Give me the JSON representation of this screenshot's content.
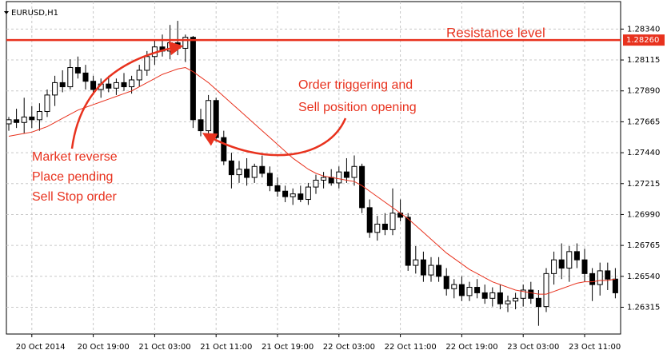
{
  "chart_data": {
    "type": "candlestick",
    "symbol": "EURUSD,H1",
    "categories": [
      null,
      null,
      null,
      "20 Oct 2014",
      null,
      null,
      null,
      null,
      null,
      null,
      null,
      "20 Oct 19:00",
      null,
      null,
      null,
      null,
      null,
      null,
      null,
      "21 Oct 03:00",
      null,
      null,
      null,
      null,
      null,
      null,
      null,
      "21 Oct 11:00",
      null,
      null,
      null,
      null,
      null,
      null,
      null,
      "21 Oct 19:00",
      null,
      null,
      null,
      null,
      null,
      null,
      null,
      "22 Oct 03:00",
      null,
      null,
      null,
      null,
      null,
      null,
      null,
      "22 Oct 11:00",
      null,
      null,
      null,
      null,
      null,
      null,
      null,
      "22 Oct 19:00",
      null,
      null,
      null,
      null,
      null,
      null,
      null,
      "23 Oct 03:00",
      null,
      null,
      null,
      null,
      null,
      null,
      null,
      "23 Oct 11:00",
      null,
      null,
      null,
      null
    ],
    "open": [
      1.2765,
      1.2768,
      1.2766,
      1.277,
      1.2768,
      1.2774,
      1.2786,
      1.2795,
      1.2792,
      1.2806,
      1.2802,
      1.2796,
      1.279,
      1.2794,
      1.2791,
      1.2795,
      1.2792,
      1.2797,
      1.2804,
      1.2814,
      1.2821,
      1.2818,
      1.2824,
      1.282,
      1.2828,
      1.2768,
      1.276,
      1.2782,
      1.2755,
      1.2738,
      1.2728,
      1.2732,
      1.2726,
      1.2734,
      1.2729,
      1.272,
      1.2716,
      1.2712,
      1.2714,
      1.271,
      1.2719,
      1.2724,
      1.2726,
      1.2722,
      1.273,
      1.2726,
      1.2734,
      1.2704,
      1.2686,
      1.2692,
      1.2688,
      1.27,
      1.2697,
      1.2662,
      1.2666,
      1.2655,
      1.2662,
      1.2654,
      1.2645,
      1.2648,
      1.264,
      1.2646,
      1.2642,
      1.2638,
      1.2642,
      1.2634,
      1.2636,
      1.2638,
      1.2644,
      1.2638,
      1.2632,
      1.2656,
      1.2666,
      1.266,
      1.2672,
      1.2666,
      1.2656,
      1.2648,
      1.2658,
      1.2652
    ],
    "high": [
      1.277,
      1.2776,
      1.2784,
      1.2778,
      1.278,
      1.279,
      1.28,
      1.2804,
      1.2812,
      1.2814,
      1.2808,
      1.28,
      1.2798,
      1.28,
      1.2798,
      1.2802,
      1.28,
      1.2808,
      1.2818,
      1.2826,
      1.283,
      1.2837,
      1.284,
      1.283,
      1.2829,
      1.2776,
      1.2786,
      1.2784,
      1.276,
      1.2744,
      1.2738,
      1.274,
      1.2736,
      1.2742,
      1.2734,
      1.2726,
      1.272,
      1.2718,
      1.272,
      1.2722,
      1.2728,
      1.273,
      1.2732,
      1.2734,
      1.274,
      1.2742,
      1.2736,
      1.271,
      1.2698,
      1.27,
      1.2718,
      1.271,
      1.27,
      1.2676,
      1.2672,
      1.2668,
      1.2668,
      1.266,
      1.2652,
      1.2654,
      1.265,
      1.2652,
      1.2648,
      1.2646,
      1.2648,
      1.264,
      1.2642,
      1.2648,
      1.265,
      1.2644,
      1.266,
      1.2672,
      1.2678,
      1.2676,
      1.2678,
      1.2674,
      1.266,
      1.2664,
      1.2664,
      1.266
    ],
    "low": [
      1.276,
      1.2762,
      1.2758,
      1.2762,
      1.276,
      1.277,
      1.2778,
      1.2788,
      1.279,
      1.2798,
      1.279,
      1.2786,
      1.2784,
      1.2788,
      1.2786,
      1.2789,
      1.2787,
      1.2792,
      1.28,
      1.2808,
      1.2814,
      1.2812,
      1.2815,
      1.281,
      1.2762,
      1.2756,
      1.2756,
      1.2752,
      1.2735,
      1.2718,
      1.2722,
      1.272,
      1.2722,
      1.2726,
      1.2716,
      1.2712,
      1.2708,
      1.2706,
      1.2708,
      1.2706,
      1.2714,
      1.2718,
      1.272,
      1.2718,
      1.2722,
      1.272,
      1.27,
      1.2682,
      1.268,
      1.2684,
      1.2684,
      1.2694,
      1.2658,
      1.2656,
      1.265,
      1.265,
      1.265,
      1.264,
      1.2638,
      1.2636,
      1.2636,
      1.2638,
      1.2634,
      1.2632,
      1.263,
      1.2628,
      1.263,
      1.2632,
      1.2634,
      1.2618,
      1.2628,
      1.2648,
      1.2652,
      1.265,
      1.266,
      1.265,
      1.2636,
      1.264,
      1.2644,
      1.2638
    ],
    "close": [
      1.2768,
      1.2766,
      1.277,
      1.2768,
      1.2774,
      1.2786,
      1.2795,
      1.2792,
      1.2806,
      1.2802,
      1.2796,
      1.279,
      1.2794,
      1.2791,
      1.2795,
      1.2792,
      1.2797,
      1.2804,
      1.2814,
      1.2821,
      1.2818,
      1.2824,
      1.282,
      1.2828,
      1.2768,
      1.276,
      1.2782,
      1.2755,
      1.2738,
      1.2728,
      1.2732,
      1.2726,
      1.2734,
      1.2729,
      1.272,
      1.2716,
      1.2712,
      1.2714,
      1.271,
      1.2719,
      1.2724,
      1.2726,
      1.2722,
      1.273,
      1.2726,
      1.2734,
      1.2704,
      1.2686,
      1.2692,
      1.2688,
      1.27,
      1.2697,
      1.2662,
      1.2666,
      1.2655,
      1.2662,
      1.2654,
      1.2645,
      1.2648,
      1.264,
      1.2646,
      1.2642,
      1.2638,
      1.2642,
      1.2634,
      1.2636,
      1.2638,
      1.2644,
      1.2638,
      1.2632,
      1.2656,
      1.2666,
      1.266,
      1.2672,
      1.2666,
      1.2656,
      1.2648,
      1.2658,
      1.2652,
      1.2642
    ],
    "up_color": "#ffffff",
    "down_color": "#000000",
    "ma": {
      "color": "#e8321e",
      "values": [
        1.2756,
        1.2757,
        1.2758,
        1.2759,
        1.2761,
        1.2763,
        1.2766,
        1.2769,
        1.2772,
        1.2775,
        1.2777,
        1.2779,
        1.2781,
        1.2783,
        1.2785,
        1.2787,
        1.2789,
        1.2792,
        1.2795,
        1.2798,
        1.2801,
        1.2803,
        1.2805,
        1.2806,
        1.2803,
        1.2799,
        1.2795,
        1.279,
        1.2785,
        1.278,
        1.2775,
        1.277,
        1.2765,
        1.276,
        1.2755,
        1.275,
        1.2745,
        1.274,
        1.2736,
        1.2732,
        1.2729,
        1.2727,
        1.2726,
        1.2725,
        1.2724,
        1.2723,
        1.272,
        1.2716,
        1.2712,
        1.2708,
        1.2704,
        1.27,
        1.2696,
        1.2691,
        1.2686,
        1.2681,
        1.2676,
        1.2671,
        1.2667,
        1.2663,
        1.2659,
        1.2656,
        1.2653,
        1.265,
        1.2648,
        1.2646,
        1.2644,
        1.2643,
        1.2642,
        1.2641,
        1.2641,
        1.2643,
        1.2645,
        1.2647,
        1.2649,
        1.265,
        1.265,
        1.2651,
        1.2651,
        1.2652
      ]
    },
    "ylim": [
      1.2612,
      1.2854
    ],
    "yticks": [
      {
        "value": 1.2834,
        "label": "1.28340"
      },
      {
        "value": 1.28115,
        "label": "1.28115"
      },
      {
        "value": 1.2789,
        "label": "1.27890"
      },
      {
        "value": 1.27665,
        "label": "1.27665"
      },
      {
        "value": 1.2744,
        "label": "1.27440"
      },
      {
        "value": 1.27215,
        "label": "1.27215"
      },
      {
        "value": 1.2699,
        "label": "1.26990"
      },
      {
        "value": 1.26765,
        "label": "1.26765"
      },
      {
        "value": 1.2654,
        "label": "1.26540"
      },
      {
        "value": 1.26315,
        "label": "1.26315"
      }
    ],
    "grid": true,
    "resistance": {
      "label": "Resistance level",
      "value": 1.2826,
      "value_label": "1.28260",
      "color": "#e8321e"
    },
    "annotations": [
      {
        "lines": [
          "Order triggering and",
          "Sell position opening"
        ]
      },
      {
        "lines": [
          "Market reverse",
          "Place pending",
          "Sell Stop order"
        ]
      }
    ]
  }
}
